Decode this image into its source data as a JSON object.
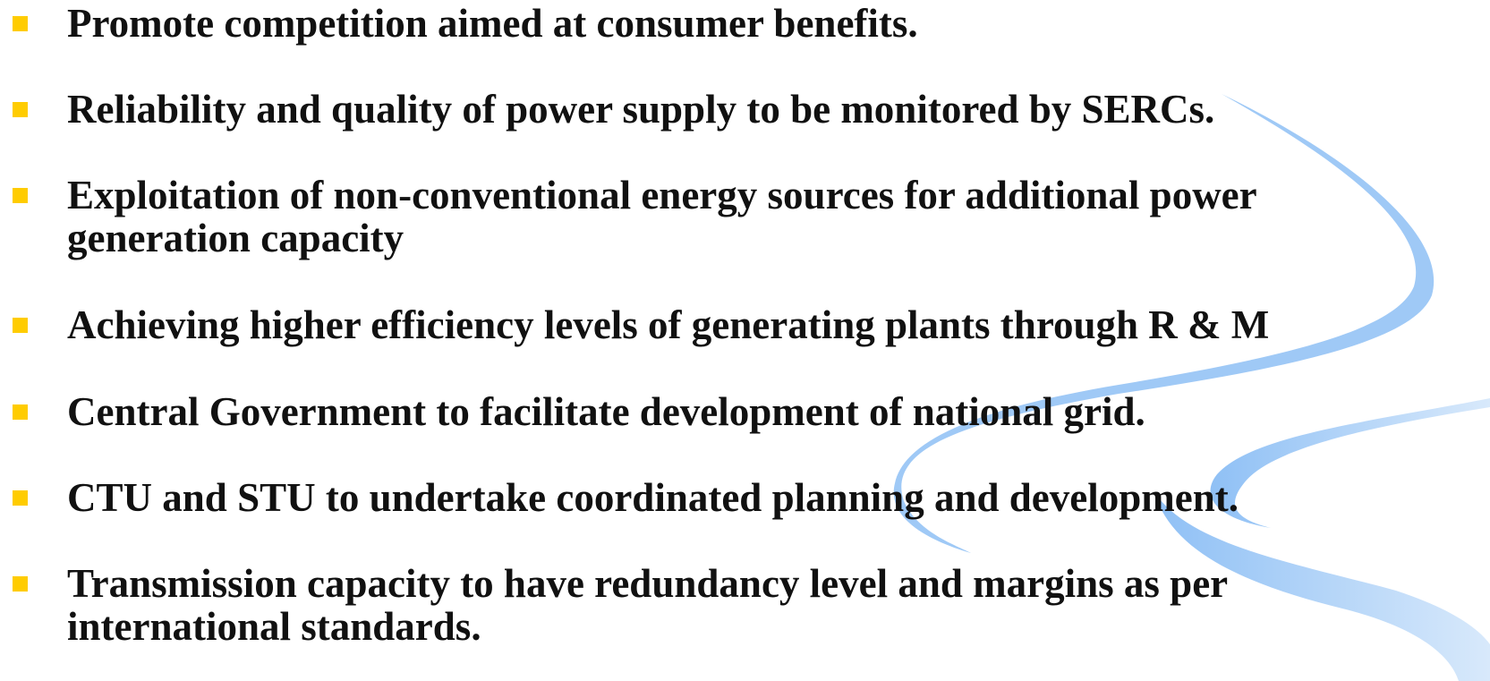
{
  "bullets": [
    {
      "lines": [
        "Promote competition aimed at consumer benefits."
      ]
    },
    {
      "lines": [
        "Reliability and quality of power supply to be monitored by SERCs."
      ]
    },
    {
      "lines": [
        "Exploitation of non-conventional energy sources for additional power",
        "generation capacity"
      ]
    },
    {
      "lines": [
        "Achieving higher efficiency levels of generating plants through R & M"
      ]
    },
    {
      "lines": [
        "Central Government to facilitate development of national grid."
      ]
    },
    {
      "lines": [
        "CTU and STU to undertake coordinated planning and development."
      ]
    },
    {
      "lines": [
        "Transmission capacity to have redundancy level and margins as per",
        "international standards."
      ]
    }
  ]
}
